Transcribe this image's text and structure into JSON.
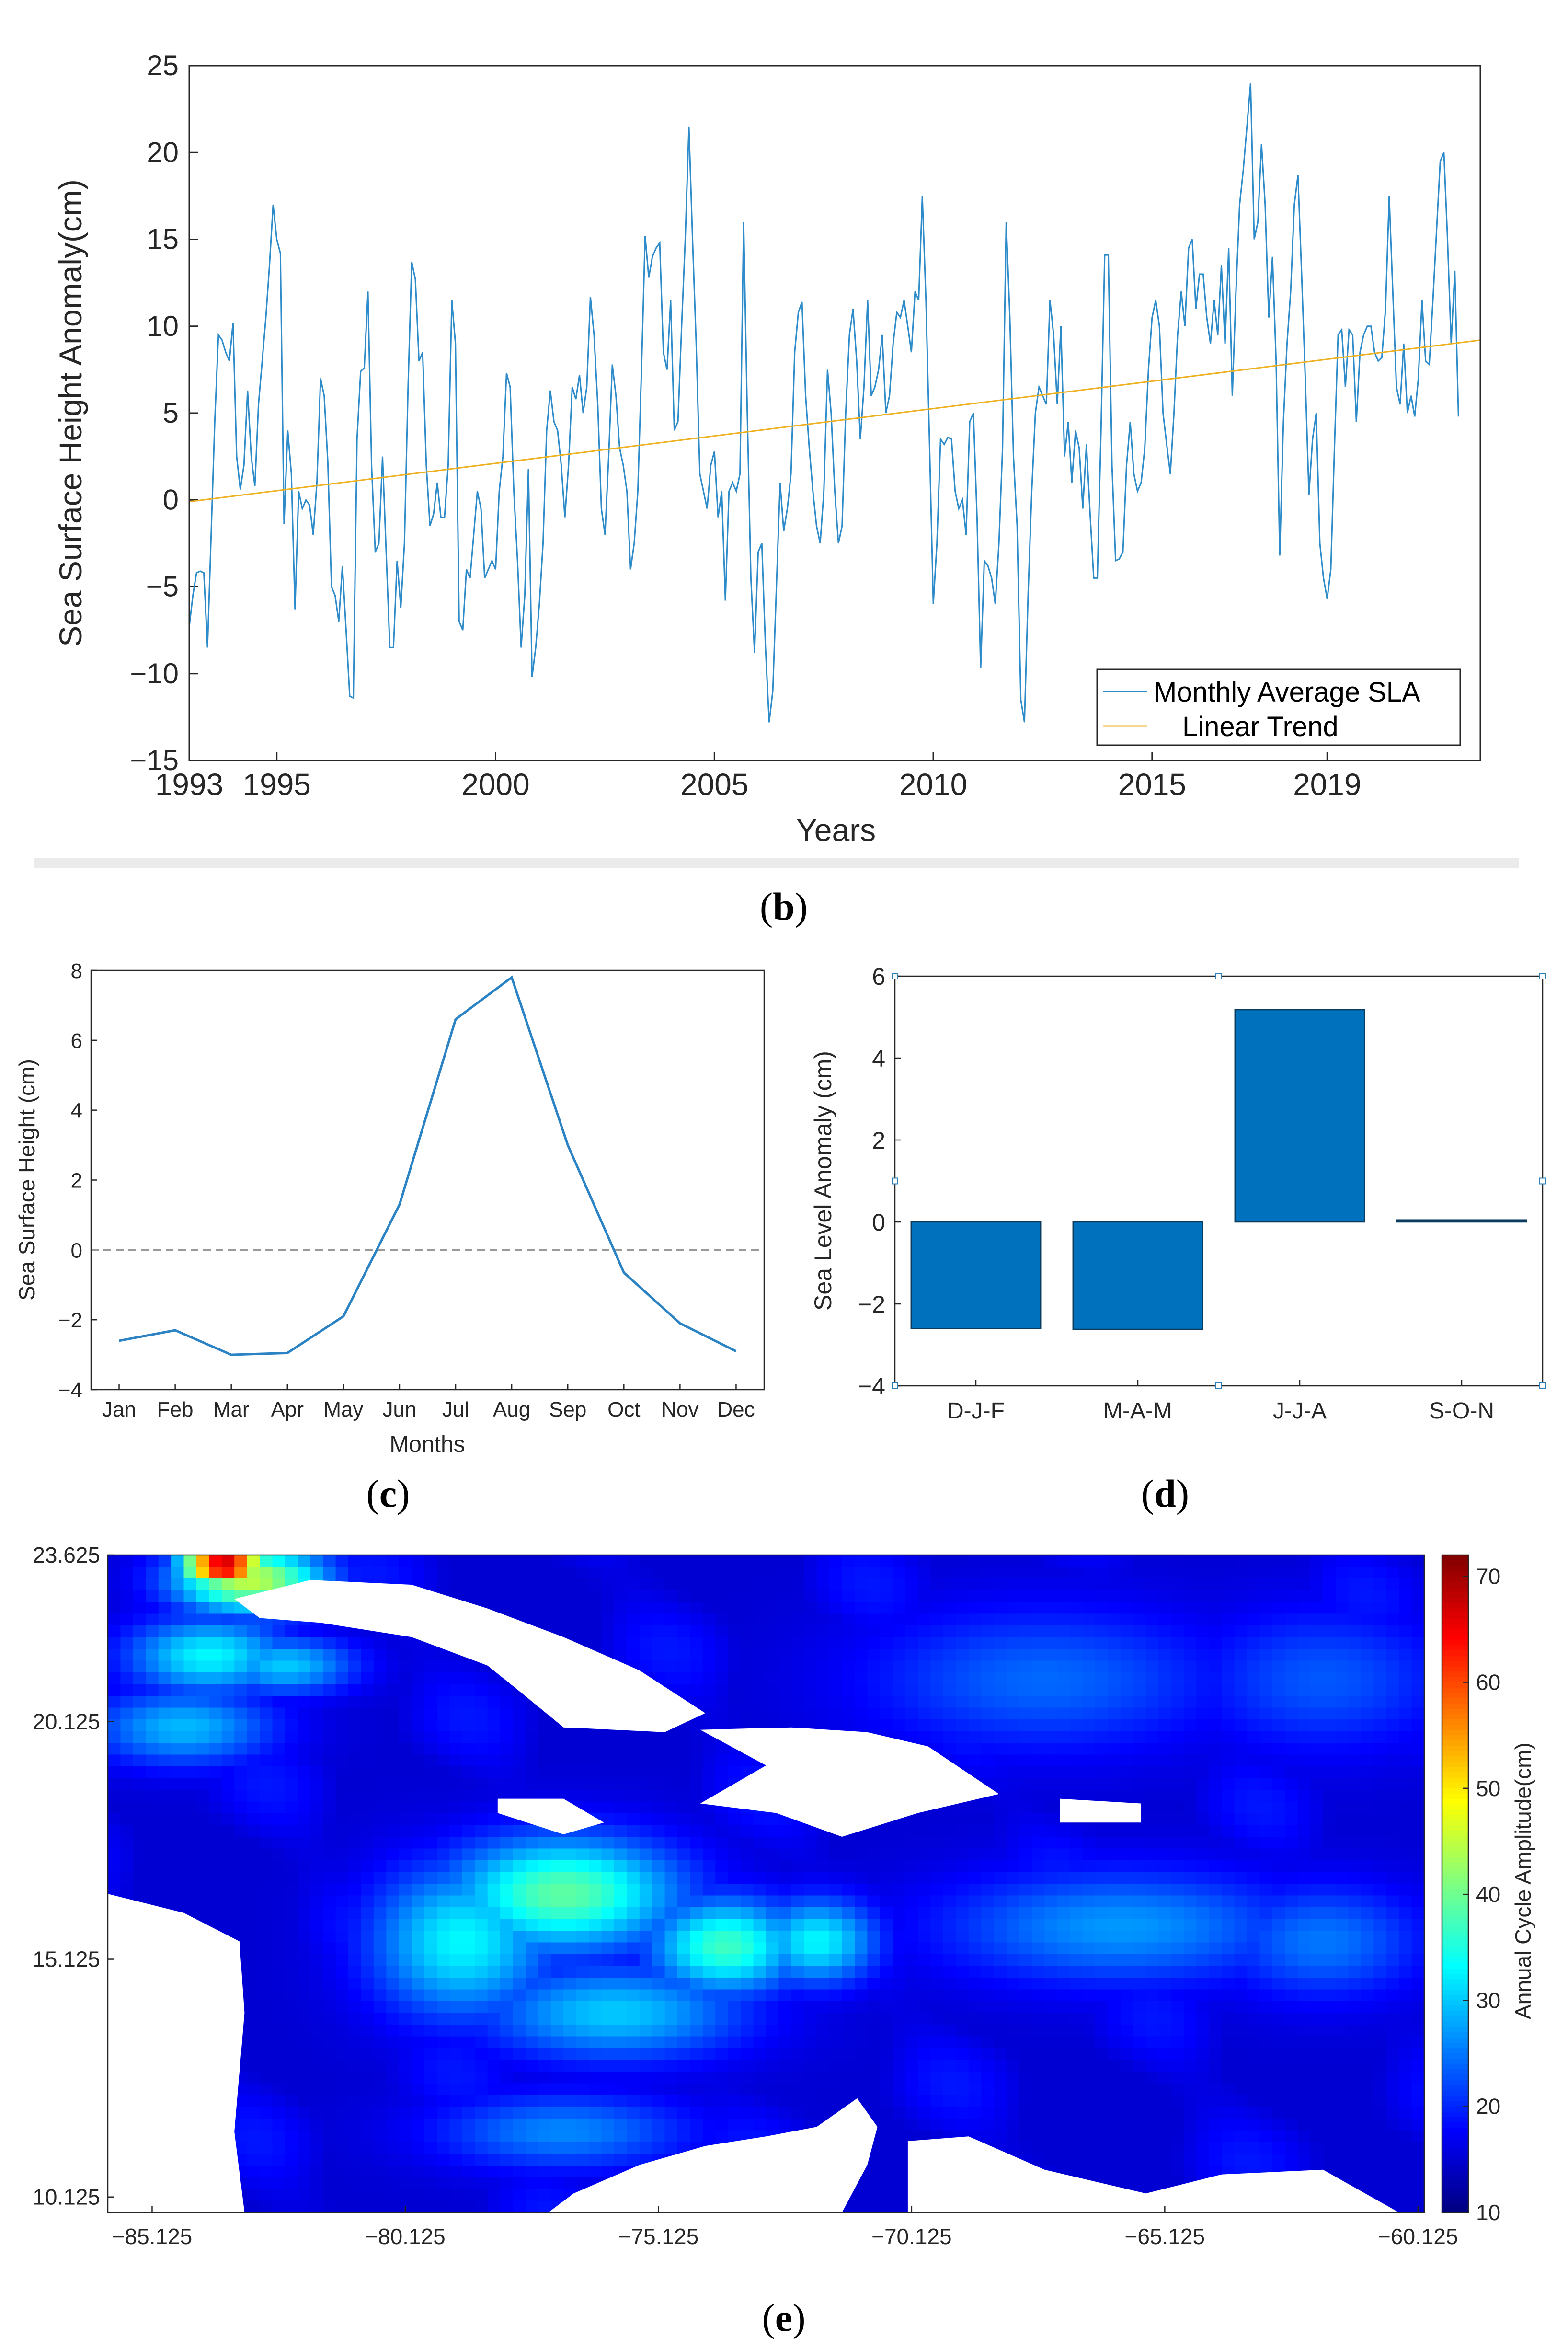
{
  "figure": {
    "labels": {
      "b": "b",
      "c": "c",
      "d": "d",
      "e": "e"
    }
  },
  "chart_data": [
    {
      "id": "b",
      "type": "line",
      "xlabel": "Years",
      "ylabel": "Sea Surface Height Anomaly(cm)",
      "xlim": [
        1993,
        2022.5
      ],
      "ylim": [
        -15,
        25
      ],
      "x_ticks": [
        1993,
        1995,
        2000,
        2005,
        2010,
        2015,
        2019
      ],
      "y_ticks": [
        -15,
        -10,
        -5,
        0,
        5,
        10,
        15,
        20,
        25
      ],
      "y_tick_labels": [
        "−15",
        "−10",
        "−5",
        "0",
        "5",
        "10",
        "15",
        "20",
        "25"
      ],
      "legend": "bottom-right",
      "series": [
        {
          "name": "Monthly Average SLA",
          "color": "#2d8bc9",
          "x_start": 1993.0,
          "x_step": 0.0833333,
          "values": [
            -7.3,
            -5.5,
            -4.2,
            -4.1,
            -4.2,
            -8.5,
            -2.0,
            4.5,
            9.5,
            9.2,
            8.5,
            8.0,
            10.2,
            2.5,
            0.6,
            2.0,
            6.3,
            2.5,
            0.8,
            5.5,
            8.0,
            10.5,
            13.5,
            17.0,
            15.0,
            14.2,
            -1.4,
            4.0,
            1.5,
            -6.3,
            0.5,
            -0.5,
            0.0,
            -0.3,
            -2.0,
            1.0,
            7.0,
            6.0,
            2.2,
            -5.0,
            -5.5,
            -7.0,
            -3.8,
            -7.5,
            -11.3,
            -11.4,
            3.5,
            7.4,
            7.6,
            12.0,
            2.0,
            -3.0,
            -2.5,
            2.5,
            -3.0,
            -8.5,
            -8.5,
            -3.5,
            -6.2,
            -2.5,
            6.5,
            13.7,
            12.7,
            8.0,
            8.5,
            2.0,
            -1.5,
            -0.8,
            1.0,
            -1.0,
            -1.0,
            2.0,
            11.5,
            9.0,
            -7.0,
            -7.5,
            -4.0,
            -4.5,
            -2.0,
            0.5,
            -0.5,
            -4.5,
            -4.0,
            -3.5,
            -4.0,
            0.5,
            2.5,
            7.3,
            6.5,
            0.5,
            -3.5,
            -8.5,
            -5.5,
            1.8,
            -10.2,
            -8.5,
            -6.0,
            -2.5,
            4.0,
            6.3,
            4.5,
            4.0,
            2.0,
            -1.0,
            2.0,
            6.5,
            5.8,
            7.2,
            5.0,
            6.5,
            11.7,
            9.5,
            5.5,
            -0.5,
            -2.0,
            2.5,
            7.8,
            6.0,
            3.0,
            2.0,
            0.5,
            -4.0,
            -2.5,
            0.5,
            7.5,
            15.2,
            12.8,
            14.0,
            14.5,
            14.8,
            8.5,
            7.5,
            11.5,
            4.0,
            4.5,
            10.0,
            15.0,
            21.5,
            15.0,
            9.0,
            1.5,
            0.5,
            -0.5,
            2.0,
            2.8,
            -1.0,
            0.5,
            -5.8,
            0.5,
            1.0,
            0.5,
            1.5,
            16.0,
            5.0,
            -4.5,
            -8.8,
            -3.0,
            -2.5,
            -8.5,
            -12.8,
            -11.0,
            -5.0,
            1.0,
            -1.8,
            -0.5,
            1.5,
            8.5,
            10.8,
            11.4,
            6.0,
            3.0,
            0.5,
            -1.5,
            -2.5,
            0.5,
            7.5,
            5.0,
            0.5,
            -2.5,
            -1.5,
            5.0,
            9.5,
            11.0,
            8.0,
            3.5,
            6.5,
            11.5,
            6.0,
            6.5,
            7.5,
            9.5,
            5.0,
            6.0,
            9.0,
            10.8,
            10.5,
            11.5,
            10.0,
            8.5,
            12.0,
            11.5,
            17.5,
            11.5,
            3.0,
            -6.0,
            -2.5,
            3.5,
            3.2,
            3.6,
            3.5,
            0.5,
            -0.5,
            0.0,
            -2.0,
            4.5,
            5.0,
            -1.0,
            -9.7,
            -3.5,
            -3.8,
            -4.5,
            -6.0,
            -2.5,
            3.0,
            16.0,
            10.5,
            2.5,
            -1.5,
            -11.5,
            -12.8,
            -5.5,
            0.5,
            5.0,
            6.5,
            6.0,
            5.5,
            11.5,
            9.5,
            5.5,
            10.0,
            2.5,
            4.5,
            1.0,
            4.0,
            3.0,
            -0.5,
            3.2,
            -0.8,
            -4.5,
            -4.5,
            4.0,
            14.1,
            14.1,
            2.0,
            -3.5,
            -3.4,
            -3.0,
            2.0,
            4.5,
            1.5,
            0.5,
            1.0,
            3.0,
            7.5,
            10.5,
            11.5,
            10.0,
            5.0,
            3.2,
            1.5,
            5.0,
            9.5,
            12.0,
            10.0,
            14.5,
            15.0,
            11.0,
            13.0,
            13.0,
            10.5,
            9.0,
            11.5,
            9.5,
            13.5,
            9.0,
            14.5,
            6.0,
            12.0,
            17.0,
            19.0,
            21.5,
            24.0,
            15.0,
            16.0,
            20.5,
            17.0,
            10.5,
            14.0,
            8.0,
            -3.2,
            4.5,
            9.0,
            12.0,
            17.0,
            18.7,
            13.0,
            7.0,
            0.3,
            3.5,
            5.0,
            -2.5,
            -4.5,
            -5.7,
            -4.0,
            3.0,
            9.5,
            9.8,
            6.5,
            9.8,
            9.5,
            4.5,
            8.5,
            9.5,
            10.0,
            10.0,
            8.5,
            8.0,
            8.2,
            11.0,
            17.5,
            12.0,
            6.5,
            5.5,
            9.0,
            5.0,
            6.0,
            4.8,
            7.0,
            11.5,
            8.0,
            7.8,
            11.5,
            15.5,
            19.5,
            20.0,
            15.0,
            9.0,
            13.2,
            4.8
          ]
        },
        {
          "name": "Linear Trend",
          "color": "#edb120",
          "x": [
            1993,
            2022.5
          ],
          "values": [
            -0.1,
            9.2
          ]
        }
      ]
    },
    {
      "id": "c",
      "type": "line",
      "xlabel": "Months",
      "ylabel": "Sea Surface Height (cm)",
      "categories": [
        "Jan",
        "Feb",
        "Mar",
        "Apr",
        "May",
        "Jun",
        "Jul",
        "Aug",
        "Sep",
        "Oct",
        "Nov",
        "Dec"
      ],
      "values": [
        -2.6,
        -2.3,
        -3.0,
        -2.95,
        -1.9,
        1.3,
        6.6,
        7.8,
        3.0,
        -0.65,
        -2.1,
        -2.9
      ],
      "ylim": [
        -4,
        8
      ],
      "y_ticks": [
        -4,
        -2,
        0,
        2,
        4,
        6,
        8
      ],
      "y_tick_labels": [
        "−4",
        "−2",
        "0",
        "2",
        "4",
        "6",
        "8"
      ],
      "reference_line": 0,
      "color": "#2b83c3"
    },
    {
      "id": "d",
      "type": "bar",
      "ylabel": "Sea Level Anomaly (cm)",
      "categories": [
        "D-J-F",
        "M-A-M",
        "J-J-A",
        "S-O-N"
      ],
      "values": [
        -2.6,
        -2.62,
        5.18,
        0.05
      ],
      "ylim": [
        -4,
        6
      ],
      "y_ticks": [
        -4,
        -2,
        0,
        2,
        4,
        6
      ],
      "y_tick_labels": [
        "−4",
        "−2",
        "0",
        "2",
        "4",
        "6"
      ],
      "color": "#0072bd"
    },
    {
      "id": "e",
      "type": "heatmap",
      "colorbar_label": "Annual Cycle Amplitude(cm)",
      "colorbar_range": [
        10,
        72
      ],
      "colorbar_ticks": [
        10,
        20,
        30,
        40,
        50,
        60,
        70
      ],
      "x_ticks": [
        "−85.125",
        "−80.125",
        "−75.125",
        "−70.125",
        "−65.125",
        "−60.125"
      ],
      "x_tick_values": [
        -85.125,
        -80.125,
        -75.125,
        -70.125,
        -65.125,
        -60.125
      ],
      "y_ticks": [
        "23.625",
        "20.125",
        "15.125",
        "10.125"
      ],
      "y_tick_values": [
        23.625,
        20.125,
        15.125,
        10.125
      ],
      "xlim": [
        -86.0,
        -60.0
      ],
      "ylim": [
        9.8,
        23.625
      ],
      "hotspots": [
        {
          "lon": -83.7,
          "lat": 23.4,
          "value": 70,
          "spread_lon": 0.8,
          "spread_lat": 0.4
        },
        {
          "lon": -83.2,
          "lat": 23.1,
          "value": 45,
          "spread_lon": 1.5,
          "spread_lat": 0.7
        },
        {
          "lon": -84.0,
          "lat": 21.5,
          "value": 33,
          "spread_lon": 1.6,
          "spread_lat": 0.8
        },
        {
          "lon": -82.5,
          "lat": 21.3,
          "value": 30,
          "spread_lon": 1.4,
          "spread_lat": 0.6
        },
        {
          "lon": -84.5,
          "lat": 20.0,
          "value": 29,
          "spread_lon": 1.8,
          "spread_lat": 0.8
        },
        {
          "lon": -77.0,
          "lat": 16.5,
          "value": 39,
          "spread_lon": 2.3,
          "spread_lat": 1.2
        },
        {
          "lon": -73.8,
          "lat": 15.4,
          "value": 37,
          "spread_lon": 1.5,
          "spread_lat": 1.0
        },
        {
          "lon": -72.0,
          "lat": 15.5,
          "value": 33,
          "spread_lon": 1.2,
          "spread_lat": 0.9
        },
        {
          "lon": -79.0,
          "lat": 15.5,
          "value": 33,
          "spread_lon": 1.8,
          "spread_lat": 1.6
        },
        {
          "lon": -76.0,
          "lat": 14.0,
          "value": 30,
          "spread_lon": 2.6,
          "spread_lat": 1.0
        },
        {
          "lon": -66.0,
          "lat": 15.8,
          "value": 27,
          "spread_lon": 3.5,
          "spread_lat": 1.2
        },
        {
          "lon": -62.0,
          "lat": 15.5,
          "value": 25,
          "spread_lon": 2.0,
          "spread_lat": 1.2
        },
        {
          "lon": -67.5,
          "lat": 21.0,
          "value": 24,
          "spread_lon": 3.5,
          "spread_lat": 1.5
        },
        {
          "lon": -62.0,
          "lat": 21.0,
          "value": 23,
          "spread_lon": 2.5,
          "spread_lat": 1.5
        },
        {
          "lon": -77.0,
          "lat": 11.5,
          "value": 26,
          "spread_lon": 2.5,
          "spread_lat": 0.8
        }
      ],
      "land_regions": [
        {
          "name": "Cuba",
          "polygon": [
            [
              -83.5,
              22.7
            ],
            [
              -82.0,
              23.1
            ],
            [
              -80.0,
              23.0
            ],
            [
              -78.5,
              22.5
            ],
            [
              -77.0,
              21.9
            ],
            [
              -75.5,
              21.2
            ],
            [
              -74.2,
              20.3
            ],
            [
              -75.0,
              19.9
            ],
            [
              -77.0,
              20.0
            ],
            [
              -77.8,
              20.7
            ],
            [
              -78.5,
              21.3
            ],
            [
              -80.0,
              21.9
            ],
            [
              -81.8,
              22.2
            ],
            [
              -83.0,
              22.3
            ]
          ]
        },
        {
          "name": "Jamaica",
          "polygon": [
            [
              -78.3,
              18.5
            ],
            [
              -77.0,
              18.5
            ],
            [
              -76.2,
              18.0
            ],
            [
              -77.0,
              17.75
            ],
            [
              -78.3,
              18.2
            ]
          ]
        },
        {
          "name": "Hispaniola",
          "polygon": [
            [
              -74.3,
              19.95
            ],
            [
              -72.5,
              20.0
            ],
            [
              -71.0,
              19.9
            ],
            [
              -69.8,
              19.6
            ],
            [
              -68.4,
              18.6
            ],
            [
              -70.0,
              18.2
            ],
            [
              -71.5,
              17.7
            ],
            [
              -72.8,
              18.2
            ],
            [
              -74.3,
              18.4
            ],
            [
              -73.0,
              19.2
            ]
          ]
        },
        {
          "name": "Puerto Rico",
          "polygon": [
            [
              -67.2,
              18.5
            ],
            [
              -65.6,
              18.4
            ],
            [
              -65.6,
              18.0
            ],
            [
              -67.2,
              18.0
            ]
          ]
        },
        {
          "name": "Central America",
          "polygon": [
            [
              -86.0,
              16.5
            ],
            [
              -84.5,
              16.1
            ],
            [
              -83.4,
              15.5
            ],
            [
              -83.3,
              14.0
            ],
            [
              -83.5,
              11.5
            ],
            [
              -83.3,
              9.8
            ],
            [
              -86.0,
              9.8
            ]
          ]
        },
        {
          "name": "South America",
          "polygon": [
            [
              -77.3,
              9.8
            ],
            [
              -76.8,
              10.2
            ],
            [
              -75.5,
              10.8
            ],
            [
              -74.2,
              11.2
            ],
            [
              -73.0,
              11.4
            ],
            [
              -72.0,
              11.6
            ],
            [
              -71.2,
              12.2
            ],
            [
              -70.8,
              11.6
            ],
            [
              -71.0,
              10.8
            ],
            [
              -71.5,
              9.8
            ]
          ]
        },
        {
          "name": "Venezuela",
          "polygon": [
            [
              -70.2,
              11.3
            ],
            [
              -69.0,
              11.4
            ],
            [
              -67.5,
              10.7
            ],
            [
              -65.5,
              10.2
            ],
            [
              -64.0,
              10.6
            ],
            [
              -62.0,
              10.7
            ],
            [
              -60.5,
              9.8
            ],
            [
              -70.2,
              9.8
            ]
          ]
        }
      ]
    }
  ]
}
